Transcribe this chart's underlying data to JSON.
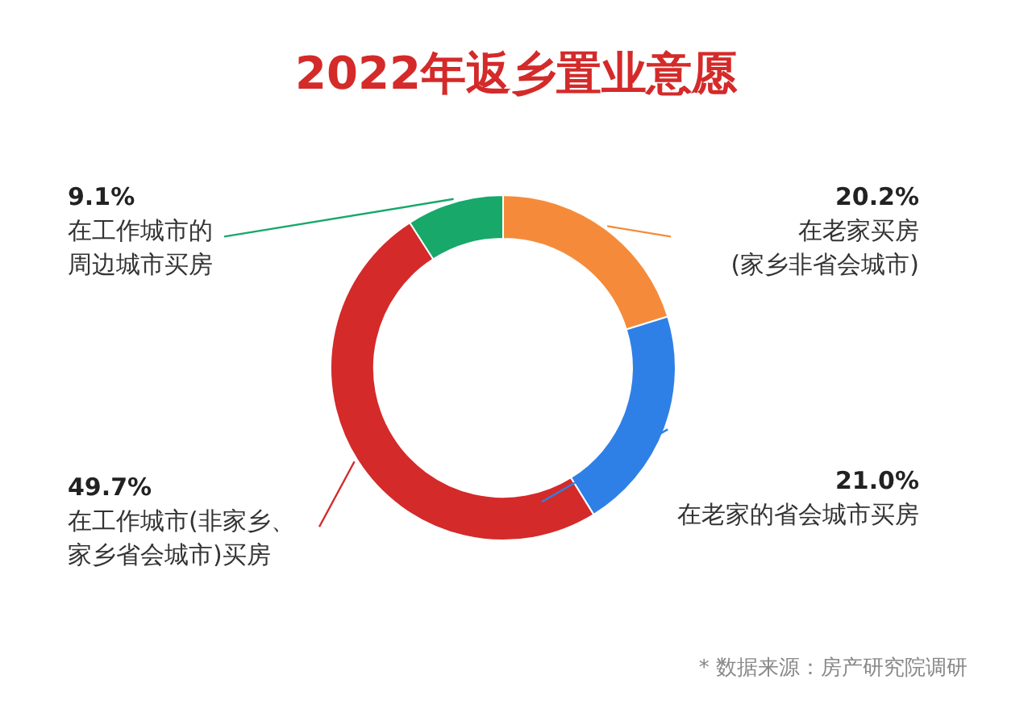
{
  "chart_data": {
    "type": "donut",
    "title": "2022年返乡置业意愿",
    "categories": [
      "在老家买房(家乡非省会城市)",
      "在老家的省会城市买房",
      "在工作城市(非家乡、家乡省会城市)买房",
      "在工作城市的周边城市买房"
    ],
    "values": [
      20.2,
      21.0,
      49.7,
      9.1
    ],
    "value_labels": [
      "20.2%",
      "21.0%",
      "49.7%",
      "9.1%"
    ],
    "colors": [
      "#f58b3a",
      "#2f80e6",
      "#d42a2a",
      "#17a86a"
    ],
    "annotations": [
      "* 数据来源：房产研究院调研"
    ]
  }
}
